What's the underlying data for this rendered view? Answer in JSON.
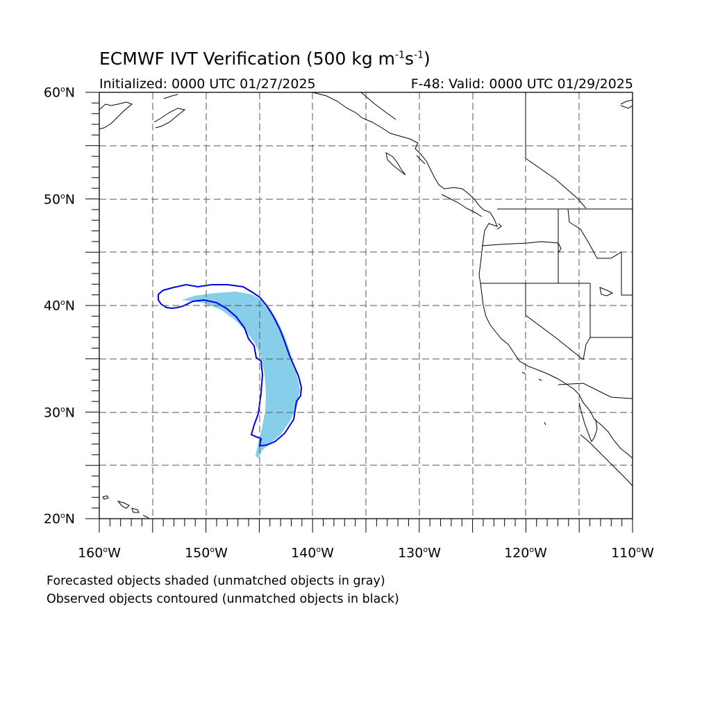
{
  "title": {
    "main": "ECMWF IVT Verification (500 kg m",
    "sup1": "-1",
    "mid": "s",
    "sup2": "-1",
    "end": ")"
  },
  "initialized": "Initialized: 0000 UTC 01/27/2025",
  "valid": "F-48: Valid: 0000 UTC 01/29/2025",
  "lat_labels": [
    {
      "num": "60",
      "unit": "N"
    },
    {
      "num": "50",
      "unit": "N"
    },
    {
      "num": "40",
      "unit": "N"
    },
    {
      "num": "30",
      "unit": "N"
    },
    {
      "num": "20",
      "unit": "N"
    }
  ],
  "lon_labels": [
    {
      "num": "160",
      "unit": "W"
    },
    {
      "num": "150",
      "unit": "W"
    },
    {
      "num": "140",
      "unit": "W"
    },
    {
      "num": "130",
      "unit": "W"
    },
    {
      "num": "120",
      "unit": "W"
    },
    {
      "num": "110",
      "unit": "W"
    }
  ],
  "degree_symbol": "o",
  "notes": [
    "Forecasted objects shaded (unmatched objects in gray)",
    "Observed objects contoured (unmatched objects in black)"
  ],
  "colors": {
    "forecast_fill": "#87ceeb",
    "observed_contour": "#0000e6",
    "grid": "#000000",
    "coast": "#000000"
  }
}
